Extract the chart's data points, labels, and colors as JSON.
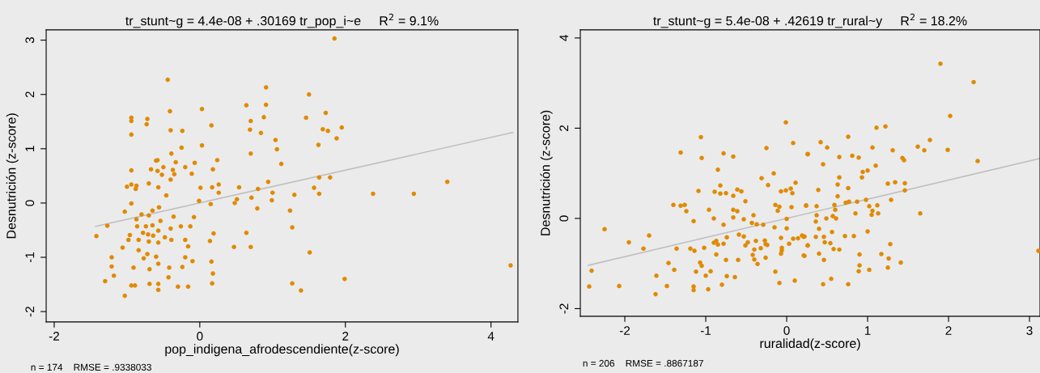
{
  "chart_data": [
    {
      "type": "scatter",
      "title": "tr_stunt~g = 4.4e-08 + .30169 tr_pop_i~e     R$^{2}$ = 9.1%",
      "xlabel": "pop_indigena_afrodescendiente(z-score)",
      "ylabel": "Desnutrición (z-score)",
      "annotations": [
        "n = 174    RMSE = .9338033"
      ],
      "xlim": [
        -2.11,
        4.37
      ],
      "ylim": [
        -2.19,
        3.19
      ],
      "xticks": [
        -2,
        0,
        2,
        4
      ],
      "yticks": [
        -2,
        -1,
        0,
        1,
        2,
        3
      ],
      "grid": false,
      "series": [
        {
          "marker": "circle",
          "color": "#e08a00",
          "x": [
            -0.44,
            -0.41,
            0.03,
            -0.94,
            -0.94,
            -0.72,
            -0.73,
            0.16,
            -0.4,
            -0.24,
            -0.94,
            0.03,
            -0.25,
            -0.39,
            -0.6,
            -0.58,
            -0.33,
            0.24,
            -0.07,
            -0.67,
            -0.5,
            -0.2,
            0.18,
            -0.58,
            -0.37,
            -0.52,
            -0.11,
            -0.35,
            -0.4,
            -0.94,
            -1.0,
            -0.87,
            -0.94,
            -0.88,
            -0.7,
            -0.57,
            0.01,
            0.17,
            0.26,
            0.26,
            -0.46,
            -0.01,
            0.15,
            -0.94,
            -1.03,
            -0.56,
            -0.65,
            -0.8,
            -0.7,
            -0.36,
            -0.08,
            -0.87,
            -1.27,
            -1.42,
            -0.86,
            -0.74,
            -0.65,
            -0.54,
            -0.26,
            -0.13,
            -0.4,
            -0.57,
            -0.78,
            -0.71,
            -0.64,
            -0.96,
            -0.98,
            -1.06,
            -0.84,
            -0.84,
            -0.48,
            -0.39,
            -0.2,
            -0.7,
            -0.57,
            -0.16,
            0.19,
            0.14,
            0.47,
            -0.72,
            -0.6,
            -0.77,
            -1.21,
            -0.2,
            -0.1,
            0.16,
            -1.21,
            -0.91,
            -0.69,
            -0.57,
            -0.42,
            -0.24,
            -1.18,
            -1.3,
            -0.43,
            0.18,
            -0.94,
            -0.89,
            -0.69,
            -0.57,
            -0.57,
            -0.3,
            -0.16,
            0.17,
            -1.03,
            0.48,
            1.85,
            0.91,
            1.5,
            0.64,
            0.91,
            1.73,
            0.7,
            0.88,
            1.46,
            0.69,
            0.84,
            1.69,
            1.76,
            1.95,
            1.88,
            1.04,
            1.06,
            1.63,
            0.7,
            1.12,
            0.94,
            1.64,
            1.79,
            0.54,
            0.8,
            1.57,
            1.0,
            0.71,
            0.99,
            1.3,
            1.64,
            2.38,
            2.94,
            3.4,
            0.51,
            0.79,
            1.24,
            0.64,
            1.27,
            0.7,
            1.51,
            4.27,
            1.27,
            1.99,
            1.39
          ],
          "values": [
            2.27,
            1.69,
            1.73,
            1.57,
            1.51,
            1.55,
            1.45,
            1.43,
            1.34,
            1.33,
            1.26,
            1.06,
            1.02,
            0.91,
            0.78,
            0.79,
            0.75,
            0.79,
            0.74,
            0.62,
            0.66,
            0.66,
            0.62,
            0.59,
            0.61,
            0.52,
            0.54,
            0.53,
            0.43,
            0.6,
            0.3,
            0.32,
            0.34,
            0.26,
            0.36,
            0.29,
            0.28,
            0.29,
            0.34,
            0.19,
            0.14,
            0.04,
            -0.02,
            -0.01,
            -0.16,
            -0.08,
            -0.14,
            -0.21,
            -0.23,
            -0.25,
            -0.26,
            -0.3,
            -0.42,
            -0.61,
            -0.43,
            -0.43,
            -0.41,
            -0.33,
            -0.43,
            -0.43,
            -0.47,
            -0.51,
            -0.55,
            -0.58,
            -0.6,
            -0.59,
            -0.68,
            -0.82,
            -0.68,
            -0.87,
            -0.63,
            -0.68,
            -0.68,
            -0.71,
            -0.73,
            -0.8,
            -0.56,
            -0.7,
            -0.81,
            -0.94,
            -0.99,
            -1.02,
            -1.0,
            -1.0,
            -1.07,
            -1.08,
            -1.17,
            -1.19,
            -1.22,
            -1.12,
            -1.19,
            -1.18,
            -1.34,
            -1.44,
            -1.37,
            -1.3,
            -1.52,
            -1.52,
            -1.49,
            -1.49,
            -1.6,
            -1.54,
            -1.54,
            -1.48,
            -1.71,
            0.0,
            3.03,
            2.13,
            2.0,
            1.8,
            1.81,
            1.66,
            1.51,
            1.58,
            1.57,
            1.35,
            1.29,
            1.36,
            1.33,
            1.39,
            1.19,
            1.16,
            0.99,
            1.07,
            0.91,
            0.72,
            0.39,
            0.47,
            0.47,
            0.29,
            0.26,
            0.28,
            0.19,
            0.1,
            0.05,
            0.15,
            0.17,
            0.17,
            0.17,
            0.39,
            0.07,
            -0.1,
            -0.14,
            -0.55,
            -0.45,
            -0.81,
            -0.91,
            -1.15,
            -1.48,
            -1.4,
            -1.61
          ]
        },
        {
          "type": "line",
          "marker": "none",
          "color": "#c0c0c0",
          "x": [
            -1.43,
            4.3
          ],
          "values": [
            -0.43,
            1.3
          ]
        }
      ]
    },
    {
      "type": "scatter",
      "title": "tr_stunt~g = 5.4e-08 + .42619 tr_rural~y     R$^{2}$ = 18.2%",
      "xlabel": "ruralidad(z-score)",
      "ylabel": "Desnutrición (z-score)",
      "annotations": [
        "n = 206    RMSE = .8867187"
      ],
      "xlim": [
        -2.55,
        3.13
      ],
      "ylim": [
        -2.17,
        4.18
      ],
      "xticks": [
        -2,
        -1,
        0,
        1,
        2,
        3
      ],
      "yticks": [
        -2,
        0,
        2,
        4
      ],
      "grid": false,
      "series": [
        {
          "marker": "circle",
          "color": "#e08a00",
          "x": [
            -0.01,
            0.08,
            -1.06,
            -1.31,
            -1.05,
            -0.78,
            -0.66,
            -0.25,
            0.26,
            -0.85,
            -0.16,
            -0.31,
            -0.23,
            0.11,
            -0.82,
            -1.09,
            -0.89,
            -0.61,
            -0.56,
            -0.82,
            -0.75,
            -0.66,
            -0.07,
            -0.01,
            0.05,
            0.07,
            -0.51,
            -1.4,
            -1.26,
            -1.31,
            -1.24,
            -0.96,
            -0.66,
            -0.61,
            -0.14,
            -0.09,
            -0.11,
            0.06,
            0.24,
            -0.9,
            -0.66,
            -0.53,
            -1.15,
            -0.78,
            -0.41,
            -0.43,
            -0.37,
            -0.29,
            0.0,
            -0.15,
            0.0,
            -2.25,
            -1.7,
            -1.95,
            -1.77,
            -1.36,
            -1.19,
            -1.14,
            -1.02,
            -0.74,
            -0.59,
            -0.53,
            -0.9,
            -0.87,
            -0.85,
            -0.78,
            -0.48,
            -0.51,
            -0.38,
            -0.27,
            -0.26,
            -0.24,
            -0.32,
            -0.4,
            -0.07,
            -0.06,
            0.08,
            0.03,
            -0.06,
            0.14,
            0.19,
            0.22,
            0.26,
            -0.87,
            -0.42,
            -0.07,
            0.22,
            -0.26,
            -0.4,
            -0.75,
            -0.6,
            -0.36,
            -1.46,
            -2.41,
            -1.39,
            -1.07,
            -1.05,
            -1.12,
            -0.94,
            -1.0,
            -1.61,
            -0.14,
            -0.74,
            -0.64,
            0.1,
            -0.09,
            -2.44,
            -2.07,
            -1.48,
            -1.15,
            -0.8,
            -1.15,
            -0.97,
            -1.62,
            1.9,
            2.31,
            2.02,
            1.11,
            1.22,
            0.76,
            0.42,
            0.5,
            1.06,
            1.77,
            1.62,
            1.7,
            1.99,
            1.31,
            0.26,
            0.65,
            0.81,
            0.89,
            1.43,
            1.45,
            2.36,
            0.45,
            1.1,
            0.94,
            1.0,
            0.93,
            0.65,
            0.63,
            1.25,
            1.34,
            1.46,
            1.46,
            0.39,
            0.76,
            0.63,
            1.29,
            0.87,
            0.98,
            0.73,
            0.77,
            0.24,
            0.37,
            0.59,
            0.6,
            1.02,
            1.12,
            1.06,
            0.85,
            1.13,
            1.05,
            1.65,
            0.37,
            0.49,
            0.57,
            0.61,
            0.36,
            0.4,
            0.56,
            1.0,
            0.21,
            0.36,
            0.46,
            0.72,
            0.83,
            0.47,
            0.54,
            0.26,
            0.58,
            0.65,
            1.28,
            0.4,
            0.21,
            0.9,
            1.17,
            0.46,
            1.26,
            1.41,
            0.9,
            1.25,
            0.89,
            1.02,
            0.55,
            0.45,
            0.76,
            3.11
          ],
          "values": [
            2.13,
            1.67,
            1.8,
            1.46,
            1.34,
            1.44,
            1.37,
            1.56,
            1.43,
            1.08,
            1.0,
            0.89,
            0.74,
            0.79,
            0.73,
            0.61,
            0.59,
            0.64,
            0.6,
            0.55,
            0.56,
            0.5,
            0.6,
            0.62,
            0.66,
            0.56,
            0.38,
            0.3,
            0.3,
            0.28,
            0.16,
            0.19,
            0.19,
            0.16,
            0.3,
            0.26,
            0.17,
            0.25,
            0.28,
            0.0,
            0.02,
            -0.02,
            -0.06,
            -0.14,
            0.07,
            -0.1,
            -0.13,
            -0.14,
            -0.01,
            -0.2,
            -0.22,
            -0.24,
            -0.38,
            -0.53,
            -0.67,
            -0.67,
            -0.67,
            -0.72,
            -0.65,
            -0.42,
            -0.36,
            -0.4,
            -0.54,
            -0.5,
            -0.58,
            -0.56,
            -0.53,
            -0.6,
            -0.5,
            -0.49,
            -0.57,
            -0.59,
            -0.66,
            -0.69,
            -0.43,
            -0.65,
            -0.45,
            -0.56,
            -0.71,
            -0.44,
            -0.38,
            -0.4,
            -0.6,
            -0.8,
            -0.81,
            -0.78,
            -0.83,
            -0.87,
            -0.91,
            -0.92,
            -0.92,
            -1.01,
            -0.99,
            -1.16,
            -1.14,
            -0.98,
            -1.05,
            -1.18,
            -1.17,
            -1.27,
            -1.27,
            -1.18,
            -1.28,
            -1.3,
            -1.38,
            -1.43,
            -1.51,
            -1.5,
            -1.5,
            -1.51,
            -1.47,
            -1.59,
            -1.57,
            -1.68,
            3.43,
            3.02,
            2.27,
            2.01,
            2.04,
            1.81,
            1.69,
            1.57,
            1.57,
            1.74,
            1.59,
            1.51,
            1.52,
            1.51,
            1.42,
            1.36,
            1.39,
            1.35,
            1.34,
            1.29,
            1.27,
            1.2,
            1.17,
            1.03,
            1.06,
            0.91,
            0.91,
            0.75,
            0.77,
            0.8,
            0.78,
            0.62,
            0.63,
            0.67,
            0.49,
            0.41,
            0.37,
            0.41,
            0.35,
            0.37,
            0.29,
            0.27,
            0.3,
            0.19,
            0.27,
            0.29,
            0.17,
            0.11,
            0.11,
            0.08,
            0.11,
            0.07,
            0.0,
            0.05,
            0.0,
            -0.07,
            -0.23,
            -0.3,
            -0.29,
            -0.41,
            -0.41,
            -0.41,
            -0.39,
            -0.39,
            -0.53,
            -0.55,
            -0.6,
            -0.68,
            -0.69,
            -0.57,
            -0.78,
            -0.82,
            -0.8,
            -0.79,
            -0.92,
            -0.89,
            -0.98,
            -1.04,
            -1.09,
            -1.17,
            -1.14,
            -1.34,
            -1.46,
            -1.46,
            -0.72
          ]
        },
        {
          "type": "line",
          "marker": "none",
          "color": "#c0c0c0",
          "x": [
            -2.45,
            3.13
          ],
          "values": [
            -1.04,
            1.33
          ]
        }
      ]
    }
  ]
}
